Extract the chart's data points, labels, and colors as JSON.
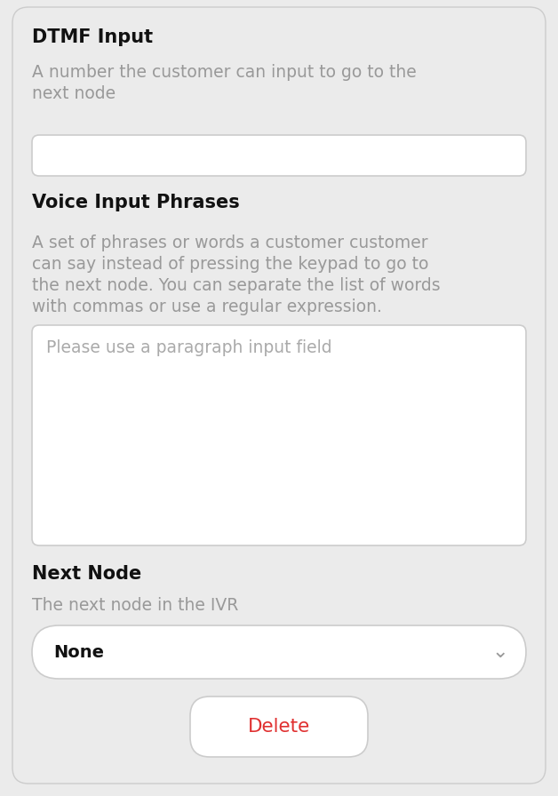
{
  "bg_color": "#ebebeb",
  "card_color": "#ebebeb",
  "white": "#ffffff",
  "border_color": "#cccccc",
  "title_color": "#111111",
  "desc_color": "#999999",
  "placeholder_color": "#aaaaaa",
  "none_text_color": "#111111",
  "delete_color": "#e03030",
  "chevron_color": "#999999",
  "dtmf_title": "DTMF Input",
  "dtmf_desc_line1": "A number the customer can input to go to the",
  "dtmf_desc_line2": "next node",
  "voice_title": "Voice Input Phrases",
  "voice_desc_line1": "A set of phrases or words a customer customer",
  "voice_desc_line2": "can say instead of pressing the keypad to go to",
  "voice_desc_line3": "the next node. You can separate the list of words",
  "voice_desc_line4": "with commas or use a regular expression.",
  "voice_placeholder": "Please use a paragraph input field",
  "next_title": "Next Node",
  "next_desc": "The next node in the IVR",
  "dropdown_text": "None",
  "delete_text": "Delete",
  "figsize": [
    6.28,
    8.96
  ],
  "dpi": 100
}
